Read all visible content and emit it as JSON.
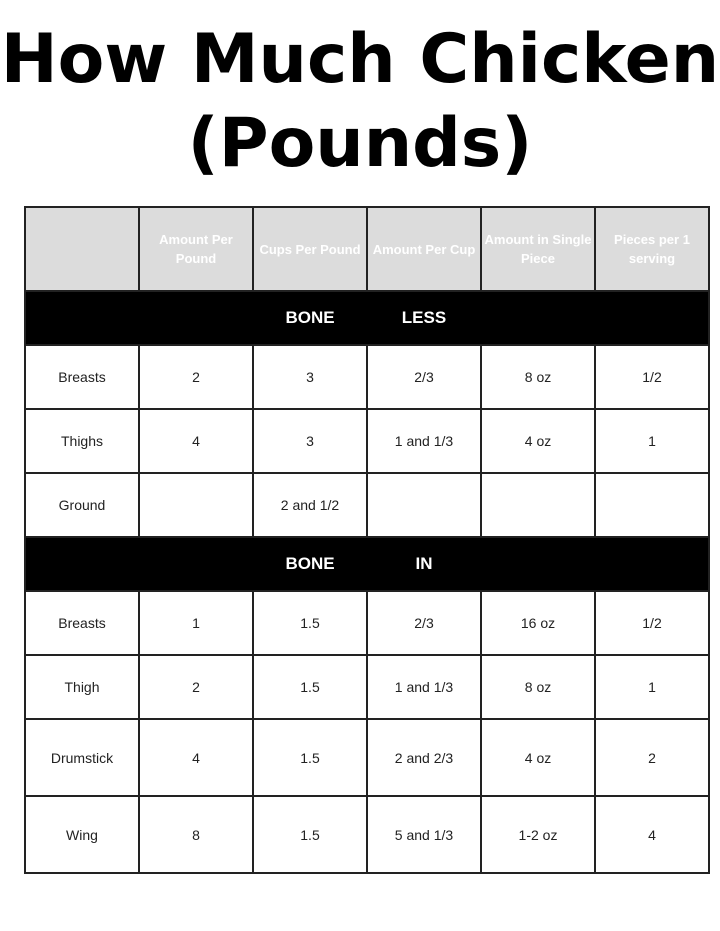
{
  "title_line1": "How Much Chicken",
  "title_line2": "(Pounds)",
  "colors": {
    "header_bg": "#dcdcdc",
    "band_bg": "#000000"
  },
  "headers": [
    "",
    "Amount Per Pound",
    "Cups Per Pound",
    "Amount Per Cup",
    "Amount in Single Piece",
    "Pieces per 1 serving"
  ],
  "sections": [
    {
      "band": [
        "BONE",
        "LESS"
      ],
      "rows": [
        [
          "Breasts",
          "2",
          "3",
          "2/3",
          "8 oz",
          "1/2"
        ],
        [
          "Thighs",
          "4",
          "3",
          "1 and 1/3",
          "4 oz",
          "1"
        ],
        [
          "Ground",
          "",
          "2 and 1/2",
          "",
          "",
          ""
        ]
      ]
    },
    {
      "band": [
        "BONE",
        "IN"
      ],
      "rows": [
        [
          "Breasts",
          "1",
          "1.5",
          "2/3",
          "16 oz",
          "1/2"
        ],
        [
          "Thigh",
          "2",
          "1.5",
          "1 and 1/3",
          "8 oz",
          "1"
        ],
        [
          "Drumstick",
          "4",
          "1.5",
          "2 and 2/3",
          "4 oz",
          "2"
        ],
        [
          "Wing",
          "8",
          "1.5",
          "5 and 1/3",
          "1-2 oz",
          "4"
        ]
      ]
    }
  ]
}
